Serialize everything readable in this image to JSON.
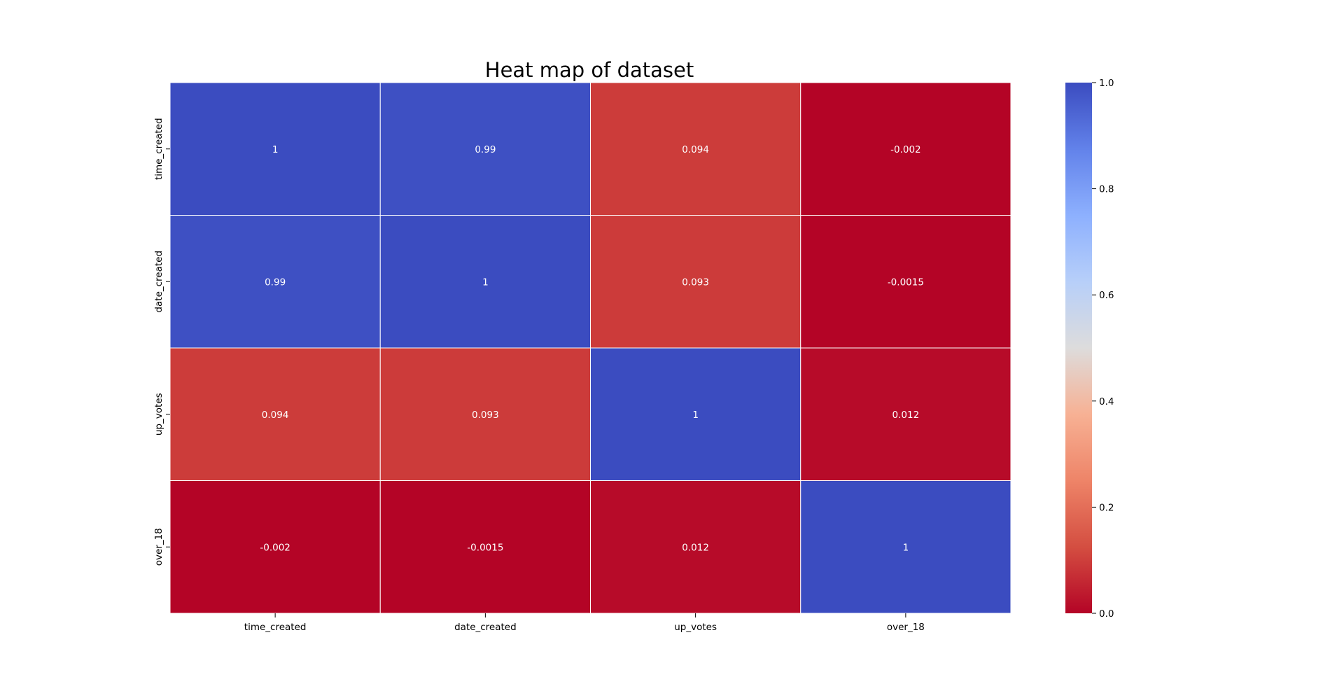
{
  "chart_data": {
    "type": "heatmap",
    "title": "Heat map of dataset",
    "x_labels": [
      "time_created",
      "date_created",
      "up_votes",
      "over_18"
    ],
    "y_labels": [
      "time_created",
      "date_created",
      "up_votes",
      "over_18"
    ],
    "values": [
      [
        1,
        0.99,
        0.094,
        -0.002
      ],
      [
        0.99,
        1,
        0.093,
        -0.0015
      ],
      [
        0.094,
        0.093,
        1,
        0.012
      ],
      [
        -0.002,
        -0.0015,
        0.012,
        1
      ]
    ],
    "annotations": [
      [
        "1",
        "0.99",
        "0.094",
        "-0.002"
      ],
      [
        "0.99",
        "1",
        "0.093",
        "-0.0015"
      ],
      [
        "0.094",
        "0.093",
        "1",
        "0.012"
      ],
      [
        "-0.002",
        "-0.0015",
        "0.012",
        "1"
      ]
    ],
    "colormap": "coolwarm_r",
    "colorbar": {
      "range": [
        0.0,
        1.0
      ],
      "ticks": [
        "0.0",
        "0.2",
        "0.4",
        "0.6",
        "0.8",
        "1.0"
      ]
    },
    "grid": false
  },
  "colors": {
    "low": "#b40426",
    "mid": "#dddcdc",
    "high": "#3b4cc0",
    "cell_text": "#ffffff",
    "gridline": "#ffffff"
  }
}
